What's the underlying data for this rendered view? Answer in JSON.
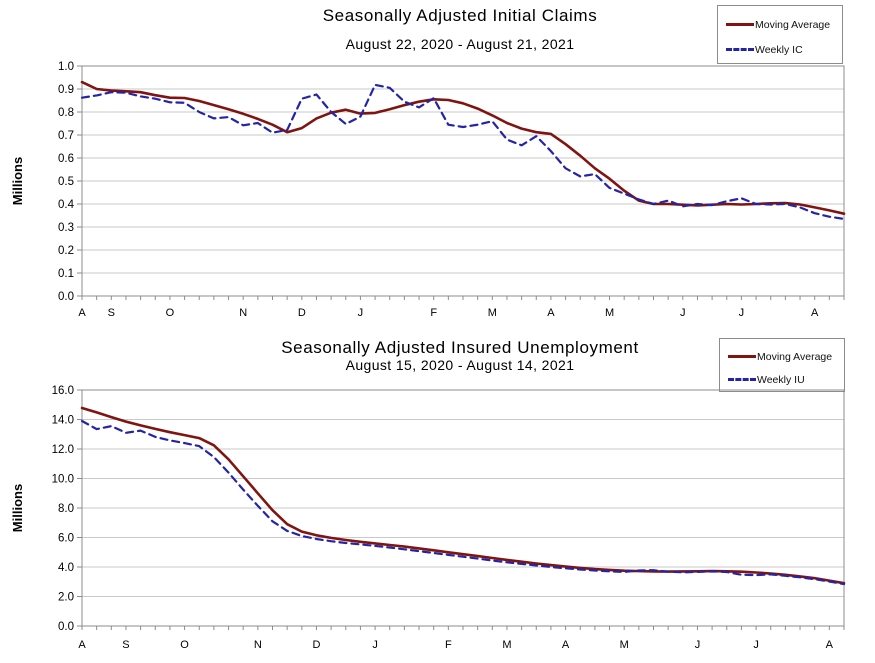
{
  "page": {
    "background": "#ffffff"
  },
  "colors": {
    "moving_average_line": "#7f1410",
    "weekly_line": "#2424a8",
    "gridline": "#c9c9c9",
    "plot_border": "#8c8c8c",
    "axis_text": "#000000"
  },
  "chart_data": [
    {
      "type": "line",
      "title": "Seasonally Adjusted Initial Claims",
      "subtitle": "August 22, 2020 - August 21, 2021",
      "ylabel": "Millions",
      "y_axis": {
        "min": 0.0,
        "max": 1.0,
        "step": 0.1,
        "decimals": 1
      },
      "x_axis": {
        "weeks": 53,
        "month_labels": [
          "A",
          "S",
          "O",
          "N",
          "D",
          "J",
          "F",
          "M",
          "A",
          "M",
          "J",
          "J",
          "A"
        ],
        "month_label_week_index": [
          0,
          2,
          6,
          11,
          15,
          19,
          24,
          28,
          32,
          36,
          41,
          45,
          50
        ]
      },
      "legend": [
        {
          "label": "Moving Average",
          "style": "solid",
          "color": "#7f1410"
        },
        {
          "label": "Weekly IC",
          "style": "dashed",
          "color": "#2424a8"
        }
      ],
      "series": [
        {
          "name": "Moving Average",
          "style": "solid",
          "values": [
            0.93,
            0.9,
            0.893,
            0.89,
            0.886,
            0.873,
            0.862,
            0.861,
            0.848,
            0.83,
            0.812,
            0.792,
            0.77,
            0.745,
            0.712,
            0.73,
            0.772,
            0.797,
            0.81,
            0.793,
            0.796,
            0.812,
            0.83,
            0.845,
            0.855,
            0.852,
            0.838,
            0.815,
            0.785,
            0.752,
            0.728,
            0.712,
            0.705,
            0.66,
            0.61,
            0.555,
            0.51,
            0.458,
            0.415,
            0.4,
            0.4,
            0.397,
            0.394,
            0.397,
            0.4,
            0.398,
            0.4,
            0.403,
            0.404,
            0.398,
            0.385,
            0.372,
            0.358
          ]
        },
        {
          "name": "Weekly IC",
          "style": "dashed",
          "values": [
            0.862,
            0.872,
            0.886,
            0.884,
            0.868,
            0.858,
            0.842,
            0.84,
            0.8,
            0.772,
            0.778,
            0.742,
            0.752,
            0.71,
            0.722,
            0.858,
            0.876,
            0.8,
            0.748,
            0.78,
            0.918,
            0.905,
            0.845,
            0.82,
            0.86,
            0.745,
            0.735,
            0.745,
            0.76,
            0.68,
            0.655,
            0.695,
            0.63,
            0.555,
            0.52,
            0.53,
            0.47,
            0.445,
            0.42,
            0.4,
            0.415,
            0.39,
            0.4,
            0.395,
            0.412,
            0.425,
            0.4,
            0.398,
            0.4,
            0.385,
            0.36,
            0.345,
            0.335
          ]
        }
      ]
    },
    {
      "type": "line",
      "title": "Seasonally Adjusted Insured Unemployment",
      "subtitle": "August 15, 2020 - August 14, 2021",
      "ylabel": "Millions",
      "y_axis": {
        "min": 0.0,
        "max": 16.0,
        "step": 2.0,
        "decimals": 1
      },
      "x_axis": {
        "weeks": 53,
        "month_labels": [
          "A",
          "S",
          "O",
          "N",
          "D",
          "J",
          "F",
          "M",
          "A",
          "M",
          "J",
          "J",
          "A"
        ],
        "month_label_week_index": [
          0,
          3,
          7,
          12,
          16,
          20,
          25,
          29,
          33,
          37,
          42,
          46,
          51
        ]
      },
      "legend": [
        {
          "label": "Moving Average",
          "style": "solid",
          "color": "#7f1410"
        },
        {
          "label": "Weekly IU",
          "style": "dashed",
          "color": "#2424a8"
        }
      ],
      "series": [
        {
          "name": "Moving Average",
          "style": "solid",
          "values": [
            14.78,
            14.48,
            14.16,
            13.86,
            13.6,
            13.36,
            13.14,
            12.94,
            12.74,
            12.25,
            11.3,
            10.15,
            9.0,
            7.85,
            6.9,
            6.4,
            6.15,
            5.97,
            5.83,
            5.71,
            5.6,
            5.49,
            5.38,
            5.26,
            5.13,
            5.0,
            4.87,
            4.74,
            4.61,
            4.48,
            4.36,
            4.24,
            4.13,
            4.03,
            3.94,
            3.86,
            3.8,
            3.75,
            3.72,
            3.7,
            3.69,
            3.7,
            3.71,
            3.72,
            3.71,
            3.68,
            3.63,
            3.56,
            3.47,
            3.36,
            3.24,
            3.08,
            2.9
          ]
        },
        {
          "name": "Weekly IU",
          "style": "dashed",
          "values": [
            13.9,
            13.35,
            13.55,
            13.1,
            13.25,
            12.82,
            12.58,
            12.4,
            12.2,
            11.45,
            10.4,
            9.25,
            8.15,
            7.1,
            6.45,
            6.1,
            5.9,
            5.75,
            5.63,
            5.53,
            5.43,
            5.32,
            5.2,
            5.08,
            4.95,
            4.82,
            4.7,
            4.57,
            4.44,
            4.32,
            4.21,
            4.1,
            4.0,
            3.91,
            3.83,
            3.76,
            3.71,
            3.67,
            3.76,
            3.78,
            3.68,
            3.64,
            3.67,
            3.7,
            3.66,
            3.48,
            3.45,
            3.5,
            3.4,
            3.3,
            3.17,
            3.02,
            2.84
          ]
        }
      ]
    }
  ]
}
